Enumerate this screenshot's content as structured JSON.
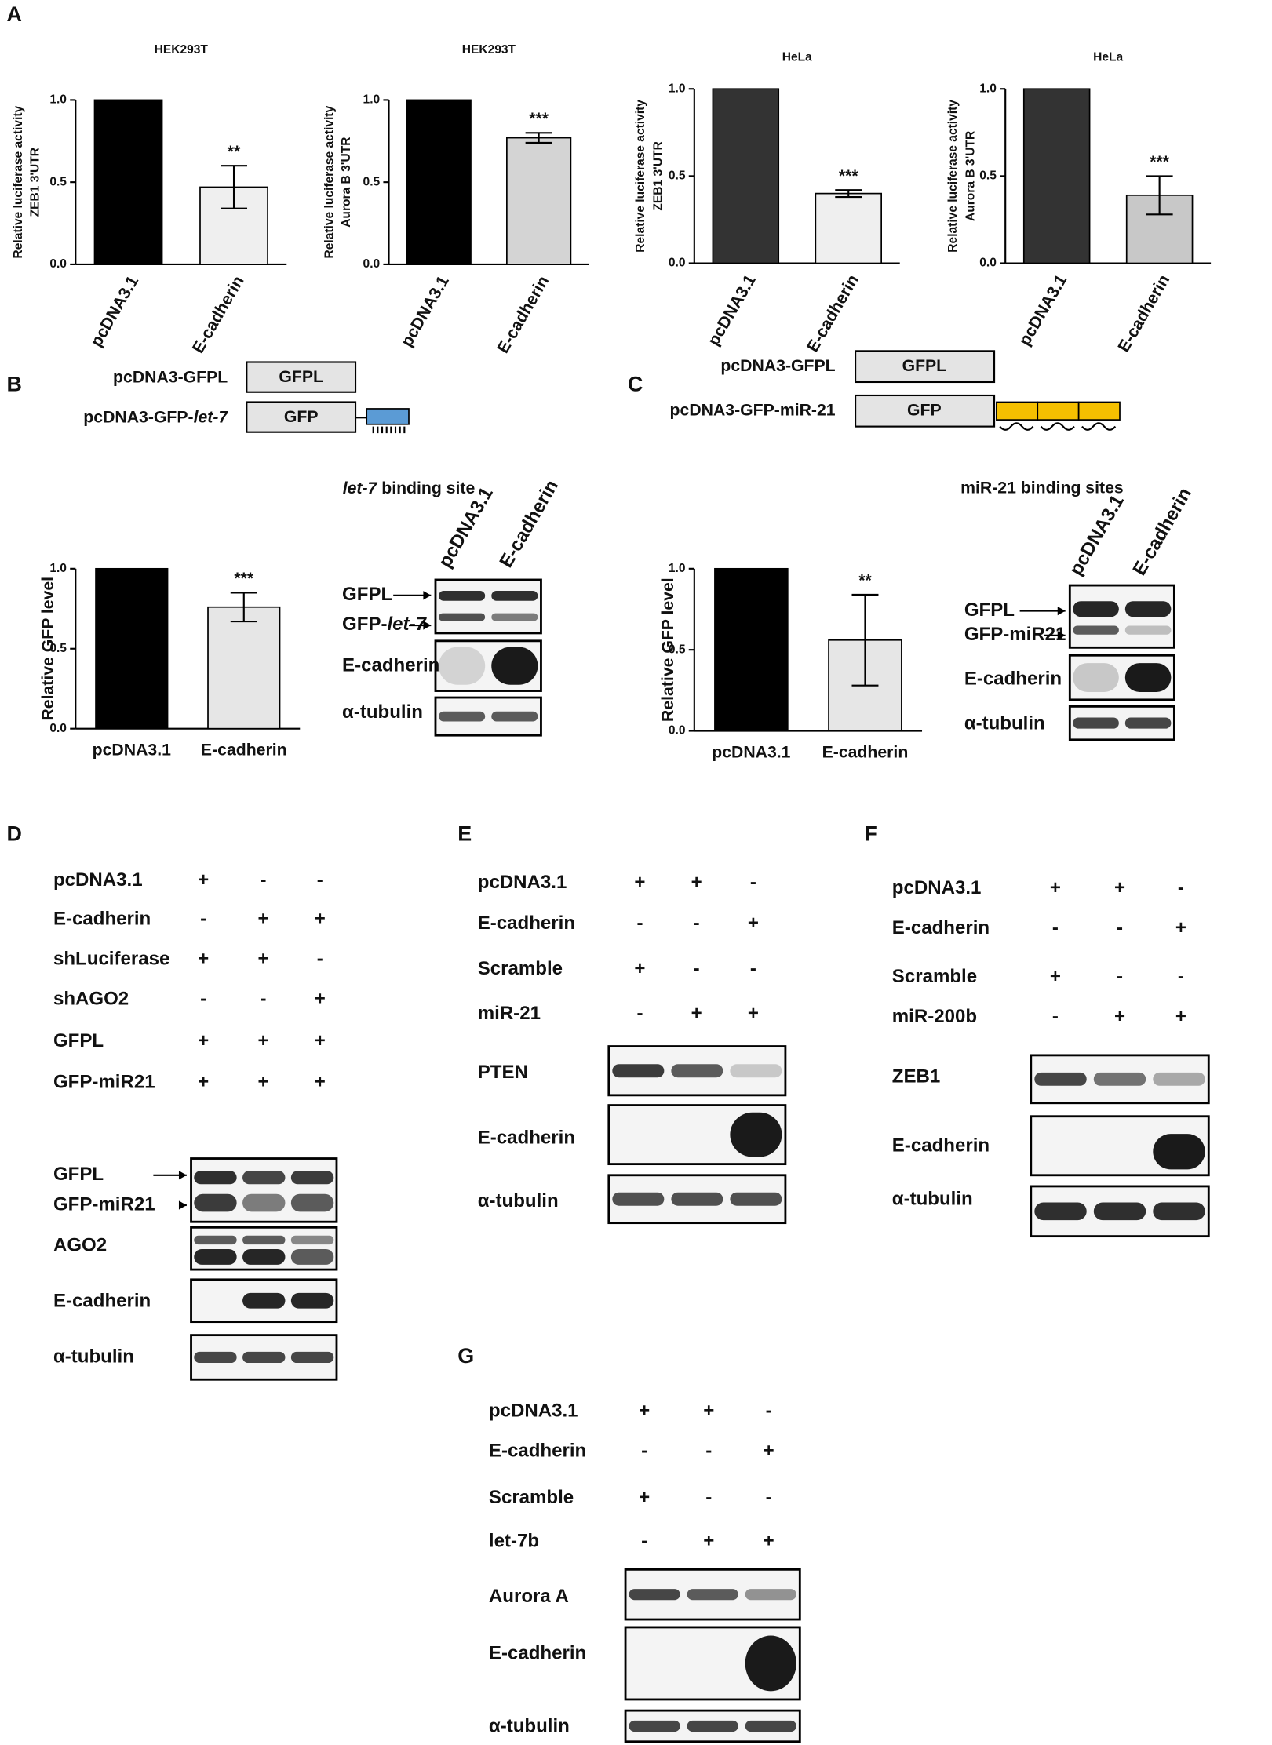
{
  "panel_labels": [
    "A",
    "B",
    "C",
    "D",
    "E",
    "F",
    "G"
  ],
  "chart_data": [
    {
      "type": "bar",
      "title": "HEK293T",
      "ylabel": [
        "Relative luciferase activity",
        "ZEB1 3'UTR"
      ],
      "categories": [
        "pcDNA3.1",
        "E-cadherin"
      ],
      "values": [
        1,
        0.47
      ],
      "errors": [
        null,
        0.13
      ],
      "colors": [
        "#000000",
        "#efefef"
      ],
      "significance": "**",
      "ylim": [
        0,
        1
      ],
      "yticks": [
        {
          "value": 0,
          "label": "0.0"
        },
        {
          "value": 0.5,
          "label": "0.5"
        },
        {
          "value": 1,
          "label": "1.0"
        }
      ]
    },
    {
      "type": "bar",
      "title": "HEK293T",
      "ylabel": [
        "Relative luciferase activity",
        "Aurora B 3'UTR"
      ],
      "categories": [
        "pcDNA3.1",
        "E-cadherin"
      ],
      "values": [
        1,
        0.77
      ],
      "errors": [
        null,
        0.03
      ],
      "colors": [
        "#000000",
        "#d4d4d4"
      ],
      "significance": "***",
      "ylim": [
        0,
        1
      ],
      "yticks": [
        {
          "value": 0,
          "label": "0.0"
        },
        {
          "value": 0.5,
          "label": "0.5"
        },
        {
          "value": 1,
          "label": "1.0"
        }
      ]
    },
    {
      "type": "bar",
      "title": "HeLa",
      "ylabel": [
        "Relative luciferase activity",
        "ZEB1 3'UTR"
      ],
      "categories": [
        "pcDNA3.1",
        "E-cadherin"
      ],
      "values": [
        1,
        0.4
      ],
      "errors": [
        null,
        0.02
      ],
      "colors": [
        "#333333",
        "#efefef"
      ],
      "significance": "***",
      "ylim": [
        0,
        1
      ],
      "yticks": [
        {
          "value": 0,
          "label": "0.0"
        },
        {
          "value": 0.5,
          "label": "0.5"
        },
        {
          "value": 1,
          "label": "1.0"
        }
      ]
    },
    {
      "type": "bar",
      "title": "HeLa",
      "ylabel": [
        "Relative luciferase activity",
        "Aurora B 3'UTR"
      ],
      "categories": [
        "pcDNA3.1",
        "E-cadherin"
      ],
      "values": [
        1,
        0.39
      ],
      "errors": [
        null,
        0.11
      ],
      "colors": [
        "#333333",
        "#c8c8c8"
      ],
      "significance": "***",
      "ylim": [
        0,
        1
      ],
      "yticks": [
        {
          "value": 0,
          "label": "0.0"
        },
        {
          "value": 0.5,
          "label": "0.5"
        },
        {
          "value": 1,
          "label": "1.0"
        }
      ]
    },
    {
      "type": "bar",
      "ylabel": [
        "Relative GFP level"
      ],
      "categories": [
        "pcDNA3.1",
        "E-cadherin"
      ],
      "values": [
        1,
        0.76
      ],
      "errors": [
        null,
        0.09
      ],
      "colors": [
        "#000000",
        "#e6e6e6"
      ],
      "significance": "***",
      "ylim": [
        0,
        1
      ],
      "yticks": [
        {
          "value": 0,
          "label": "0.0"
        },
        {
          "value": 0.5,
          "label": "0.5"
        },
        {
          "value": 1,
          "label": "1.0"
        }
      ]
    },
    {
      "type": "bar",
      "ylabel": [
        "Relative GFP level"
      ],
      "categories": [
        "pcDNA3.1",
        "E-cadherin"
      ],
      "values": [
        1,
        0.56
      ],
      "errors": [
        null,
        0.28
      ],
      "colors": [
        "#000000",
        "#e6e6e6"
      ],
      "significance": "**",
      "ylim": [
        0,
        1
      ],
      "yticks": [
        {
          "value": 0,
          "label": "0.0"
        },
        {
          "value": 0.5,
          "label": "0.5"
        },
        {
          "value": 1,
          "label": "1.0"
        }
      ]
    }
  ],
  "panel_b": {
    "constructs": [
      {
        "label": [
          "pcDNA3-GFPL"
        ],
        "box": "GFPL"
      },
      {
        "label": [
          "pcDNA3-GFP-",
          "let-7"
        ],
        "box": "GFP"
      }
    ],
    "site": [
      "",
      "let-7",
      " binding site"
    ],
    "lanes": [
      "pcDNA3.1",
      "E-cadherin"
    ],
    "blots": [
      {
        "labels": [
          [
            "GFPL"
          ],
          [
            "GFP-",
            "let-7"
          ]
        ]
      },
      {
        "labels": [
          [
            "E-cadherin"
          ]
        ]
      },
      {
        "labels": [
          [
            "α-tubulin"
          ]
        ]
      }
    ]
  },
  "panel_c": {
    "constructs": [
      {
        "label": "pcDNA3-GFPL",
        "box": "GFPL"
      },
      {
        "label": "pcDNA3-GFP-miR-21",
        "box": "GFP"
      }
    ],
    "site": "miR-21 binding sites",
    "lanes": [
      "pcDNA3.1",
      "E-cadherin"
    ],
    "blots": [
      {
        "labels": [
          "GFPL",
          "GFP-miR21"
        ]
      },
      {
        "labels": [
          "E-cadherin"
        ]
      },
      {
        "labels": [
          "α-tubulin"
        ]
      }
    ]
  },
  "panel_d": {
    "conditions": [
      {
        "label": "pcDNA3.1",
        "signs": [
          "+",
          "-",
          "-"
        ]
      },
      {
        "label": "E-cadherin",
        "signs": [
          "-",
          "+",
          "+"
        ]
      },
      {
        "label": "shLuciferase",
        "signs": [
          "+",
          "+",
          "-"
        ]
      },
      {
        "label": "shAGO2",
        "signs": [
          "-",
          "-",
          "+"
        ]
      },
      {
        "label": "GFPL",
        "signs": [
          "+",
          "+",
          "+"
        ]
      },
      {
        "label": "GFP-miR21",
        "signs": [
          "+",
          "+",
          "+"
        ]
      }
    ],
    "blots": [
      {
        "labels": [
          "GFPL",
          "GFP-miR21"
        ]
      },
      {
        "labels": [
          "AGO2"
        ]
      },
      {
        "labels": [
          "E-cadherin"
        ]
      },
      {
        "labels": [
          "α-tubulin"
        ]
      }
    ]
  },
  "panel_e": {
    "conditions": [
      {
        "label": "pcDNA3.1",
        "signs": [
          "+",
          "+",
          "-"
        ]
      },
      {
        "label": "E-cadherin",
        "signs": [
          "-",
          "-",
          "+"
        ]
      },
      {
        "label": "Scramble",
        "signs": [
          "+",
          "-",
          "-"
        ]
      },
      {
        "label": "miR-21",
        "signs": [
          "-",
          "+",
          "+"
        ]
      }
    ],
    "blots": [
      {
        "labels": [
          "PTEN"
        ]
      },
      {
        "labels": [
          "E-cadherin"
        ]
      },
      {
        "labels": [
          "α-tubulin"
        ]
      }
    ]
  },
  "panel_f": {
    "conditions": [
      {
        "label": "pcDNA3.1",
        "signs": [
          "+",
          "+",
          "-"
        ]
      },
      {
        "label": "E-cadherin",
        "signs": [
          "-",
          "-",
          "+"
        ]
      },
      {
        "label": "Scramble",
        "signs": [
          "+",
          "-",
          "-"
        ]
      },
      {
        "label": "miR-200b",
        "signs": [
          "-",
          "+",
          "+"
        ]
      }
    ],
    "blots": [
      {
        "labels": [
          "ZEB1"
        ]
      },
      {
        "labels": [
          "E-cadherin"
        ]
      },
      {
        "labels": [
          "α-tubulin"
        ]
      }
    ]
  },
  "panel_g": {
    "conditions": [
      {
        "label": "pcDNA3.1",
        "signs": [
          "+",
          "+",
          "-"
        ]
      },
      {
        "label": "E-cadherin",
        "signs": [
          "-",
          "-",
          "+"
        ]
      },
      {
        "label": "Scramble",
        "signs": [
          "+",
          "-",
          "-"
        ]
      },
      {
        "label": "let-7b",
        "signs": [
          "-",
          "+",
          "+"
        ]
      }
    ],
    "blots": [
      {
        "labels": [
          "Aurora A"
        ]
      },
      {
        "labels": [
          "E-cadherin"
        ]
      },
      {
        "labels": [
          "α-tubulin"
        ]
      }
    ]
  }
}
